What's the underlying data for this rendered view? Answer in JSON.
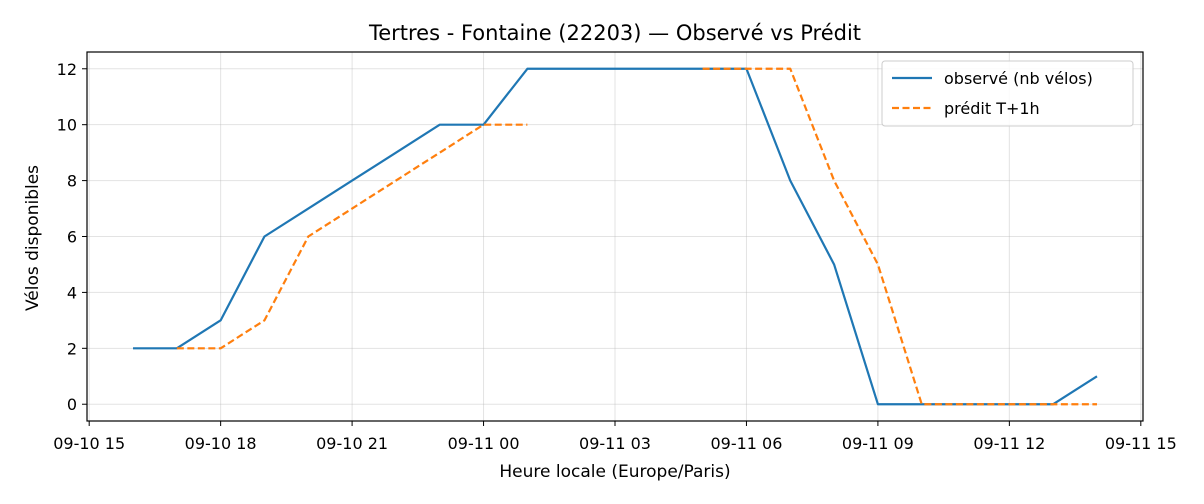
{
  "chart_data": {
    "type": "line",
    "title": "Tertres - Fontaine (22203) — Observé vs Prédit",
    "xlabel": "Heure locale (Europe/Paris)",
    "ylabel": "Vélos disponibles",
    "ylim": [
      -0.6,
      12.6
    ],
    "yticks": [
      0,
      2,
      4,
      6,
      8,
      10,
      12
    ],
    "xlim": [
      "2025-09-10 14:57",
      "2025-09-11 15:03"
    ],
    "xticks": [
      {
        "t": "2025-09-10 15:00",
        "label": "09-10 15"
      },
      {
        "t": "2025-09-10 18:00",
        "label": "09-10 18"
      },
      {
        "t": "2025-09-10 21:00",
        "label": "09-10 21"
      },
      {
        "t": "2025-09-11 00:00",
        "label": "09-11 00"
      },
      {
        "t": "2025-09-11 03:00",
        "label": "09-11 03"
      },
      {
        "t": "2025-09-11 06:00",
        "label": "09-11 06"
      },
      {
        "t": "2025-09-11 09:00",
        "label": "09-11 09"
      },
      {
        "t": "2025-09-11 12:00",
        "label": "09-11 12"
      },
      {
        "t": "2025-09-11 15:00",
        "label": "09-11 15"
      }
    ],
    "grid": true,
    "legend_position": "top-right",
    "series": [
      {
        "name": "observé (nb vélos)",
        "color": "#1f77b4",
        "style": "solid",
        "points": [
          {
            "t": "2025-09-10 16:00",
            "y": 2
          },
          {
            "t": "2025-09-10 17:00",
            "y": 2
          },
          {
            "t": "2025-09-10 18:00",
            "y": 3
          },
          {
            "t": "2025-09-10 19:00",
            "y": 6
          },
          {
            "t": "2025-09-10 20:00",
            "y": 7
          },
          {
            "t": "2025-09-10 21:00",
            "y": 8
          },
          {
            "t": "2025-09-10 22:00",
            "y": 9
          },
          {
            "t": "2025-09-10 23:00",
            "y": 10
          },
          {
            "t": "2025-09-11 00:00",
            "y": 10
          },
          {
            "t": "2025-09-11 01:00",
            "y": 12
          },
          {
            "t": "2025-09-11 02:00",
            "y": 12
          },
          {
            "t": "2025-09-11 03:00",
            "y": 12
          },
          {
            "t": "2025-09-11 04:00",
            "y": 12
          },
          {
            "t": "2025-09-11 05:00",
            "y": 12
          },
          {
            "t": "2025-09-11 06:00",
            "y": 12
          },
          {
            "t": "2025-09-11 07:00",
            "y": 8
          },
          {
            "t": "2025-09-11 08:00",
            "y": 5
          },
          {
            "t": "2025-09-11 09:00",
            "y": 0
          },
          {
            "t": "2025-09-11 10:00",
            "y": 0
          },
          {
            "t": "2025-09-11 11:00",
            "y": 0
          },
          {
            "t": "2025-09-11 12:00",
            "y": 0
          },
          {
            "t": "2025-09-11 13:00",
            "y": 0
          },
          {
            "t": "2025-09-11 14:00",
            "y": 1
          }
        ]
      },
      {
        "name": "prédit T+1h",
        "color": "#ff7f0e",
        "style": "dashed",
        "segments": [
          [
            {
              "t": "2025-09-10 17:00",
              "y": 2
            },
            {
              "t": "2025-09-10 18:00",
              "y": 2
            },
            {
              "t": "2025-09-10 19:00",
              "y": 3
            },
            {
              "t": "2025-09-10 20:00",
              "y": 6
            },
            {
              "t": "2025-09-10 21:00",
              "y": 7
            },
            {
              "t": "2025-09-10 22:00",
              "y": 8
            },
            {
              "t": "2025-09-10 23:00",
              "y": 9
            },
            {
              "t": "2025-09-11 00:00",
              "y": 10
            },
            {
              "t": "2025-09-11 01:00",
              "y": 10
            }
          ],
          [
            {
              "t": "2025-09-11 05:00",
              "y": 12
            },
            {
              "t": "2025-09-11 06:00",
              "y": 12
            },
            {
              "t": "2025-09-11 07:00",
              "y": 12
            },
            {
              "t": "2025-09-11 08:00",
              "y": 8
            },
            {
              "t": "2025-09-11 09:00",
              "y": 5
            },
            {
              "t": "2025-09-11 10:00",
              "y": 0
            },
            {
              "t": "2025-09-11 11:00",
              "y": 0
            },
            {
              "t": "2025-09-11 12:00",
              "y": 0
            },
            {
              "t": "2025-09-11 13:00",
              "y": 0
            },
            {
              "t": "2025-09-11 14:00",
              "y": 0
            }
          ]
        ]
      }
    ]
  }
}
